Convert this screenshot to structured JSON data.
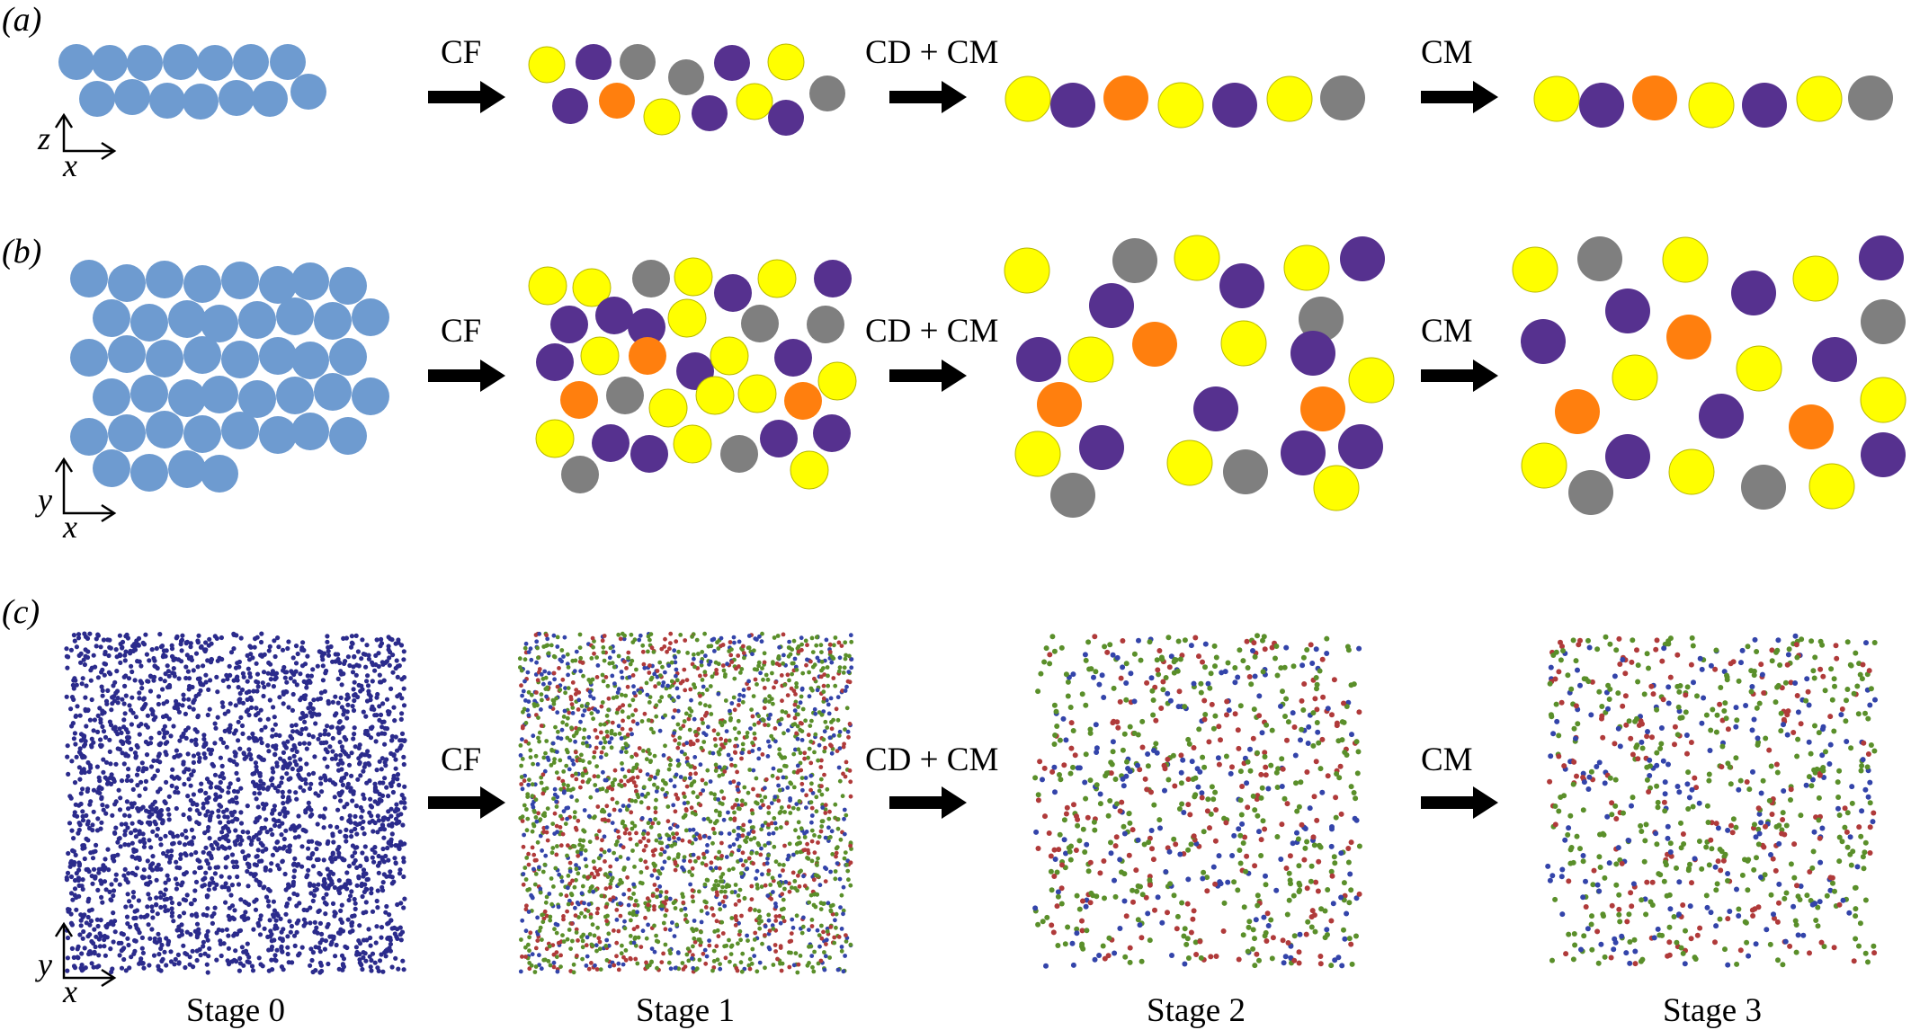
{
  "panels": {
    "a": {
      "label": "(a)"
    },
    "b": {
      "label": "(b)"
    },
    "c": {
      "label": "(c)"
    }
  },
  "arrows": {
    "step1": "CF",
    "step2": "CD + CM",
    "step3": "CM"
  },
  "axes": {
    "a": {
      "vertical": "z",
      "horizontal": "x"
    },
    "b": {
      "vertical": "y",
      "horizontal": "x"
    },
    "c": {
      "vertical": "y",
      "horizontal": "x"
    }
  },
  "stages": [
    "Stage 0",
    "Stage 1",
    "Stage 2",
    "Stage 3"
  ],
  "colors": {
    "initial_blue": "#6e9bd0",
    "yellow": "#ffff00",
    "purple": "#56318f",
    "orange": "#ff7f0e",
    "gray": "#7f7f7f",
    "dot_navy": "#2b2b8c",
    "dot_red": "#b03a3a",
    "dot_green": "#5a8f2a",
    "dot_blue": "#3344aa"
  }
}
